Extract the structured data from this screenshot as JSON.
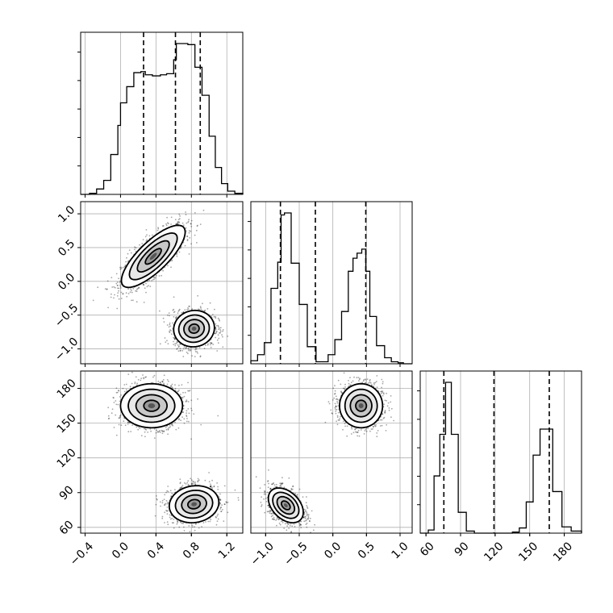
{
  "chart_data": {
    "type": "corner",
    "title": "",
    "parameters": [
      "",
      "",
      ""
    ],
    "ranges": [
      [
        -0.45,
        1.38
      ],
      [
        -1.22,
        1.18
      ],
      [
        55,
        195
      ]
    ],
    "ticks": [
      [
        -0.4,
        0.0,
        0.4,
        0.8,
        1.2
      ],
      [
        -1.0,
        -0.5,
        0.0,
        0.5,
        1.0
      ],
      [
        60,
        90,
        120,
        150,
        180
      ]
    ],
    "tick_labels": [
      [
        "−0.4",
        "0.0",
        "0.4",
        "0.8",
        "1.2"
      ],
      [
        "−1.0",
        "−0.5",
        "0.0",
        "0.5",
        "1.0"
      ],
      [
        "60",
        "90",
        "120",
        "150",
        "180"
      ]
    ],
    "grid": true,
    "quantile_lines": [
      [
        0.26,
        0.62,
        0.9
      ],
      [
        -0.78,
        -0.26,
        0.49
      ],
      [
        75.5,
        119,
        167
      ]
    ],
    "histograms": [
      {
        "parameter_index": 0,
        "bin_edges": [
          -0.45,
          -0.35,
          -0.27,
          -0.19,
          -0.11,
          -0.03,
          0.0,
          0.07,
          0.15,
          0.23,
          0.28,
          0.36,
          0.45,
          0.52,
          0.6,
          0.63,
          0.69,
          0.76,
          0.84,
          0.92,
          1.0,
          1.07,
          1.14,
          1.21,
          1.29,
          1.38
        ],
        "counts": [
          0,
          1,
          5,
          13,
          37,
          64,
          85,
          100,
          113,
          114,
          111,
          110,
          111,
          112,
          125,
          140,
          140,
          139,
          118,
          92,
          54,
          25,
          10,
          3,
          1
        ]
      },
      {
        "parameter_index": 1,
        "bin_edges": [
          -1.22,
          -1.12,
          -1.02,
          -0.92,
          -0.82,
          -0.77,
          -0.72,
          -0.62,
          -0.5,
          -0.38,
          -0.25,
          -0.17,
          -0.07,
          0.03,
          0.13,
          0.23,
          0.3,
          0.36,
          0.43,
          0.49,
          0.55,
          0.65,
          0.77,
          0.87,
          0.97,
          1.05,
          1.18
        ],
        "counts": [
          3,
          9,
          21,
          75,
          101,
          148,
          150,
          100,
          59,
          17,
          2,
          2,
          9,
          24,
          52,
          92,
          105,
          110,
          114,
          92,
          47,
          18,
          6,
          2,
          1,
          0
        ]
      },
      {
        "parameter_index": 2,
        "bin_edges": [
          55,
          62,
          67,
          72,
          77,
          82,
          88,
          95,
          102,
          110,
          118,
          128,
          135,
          141,
          147,
          153,
          159,
          164,
          170,
          178,
          186,
          195
        ],
        "counts": [
          0,
          3,
          55,
          95,
          145,
          95,
          20,
          2,
          0,
          0,
          0,
          0,
          1,
          5,
          30,
          75,
          100,
          100,
          40,
          6,
          2
        ]
      }
    ],
    "contour_panels": [
      {
        "x_index": 0,
        "y_index": 1,
        "modes": [
          {
            "x": 0.37,
            "y": 0.37,
            "note": "tilted elongated blob"
          },
          {
            "x": 0.83,
            "y": -0.7,
            "note": "compact blob"
          }
        ]
      },
      {
        "x_index": 0,
        "y_index": 2,
        "modes": [
          {
            "x": 0.35,
            "y": 165
          },
          {
            "x": 0.83,
            "y": 80
          }
        ]
      },
      {
        "x_index": 1,
        "y_index": 2,
        "modes": [
          {
            "x": 0.42,
            "y": 165
          },
          {
            "x": -0.7,
            "y": 79
          }
        ]
      }
    ]
  }
}
